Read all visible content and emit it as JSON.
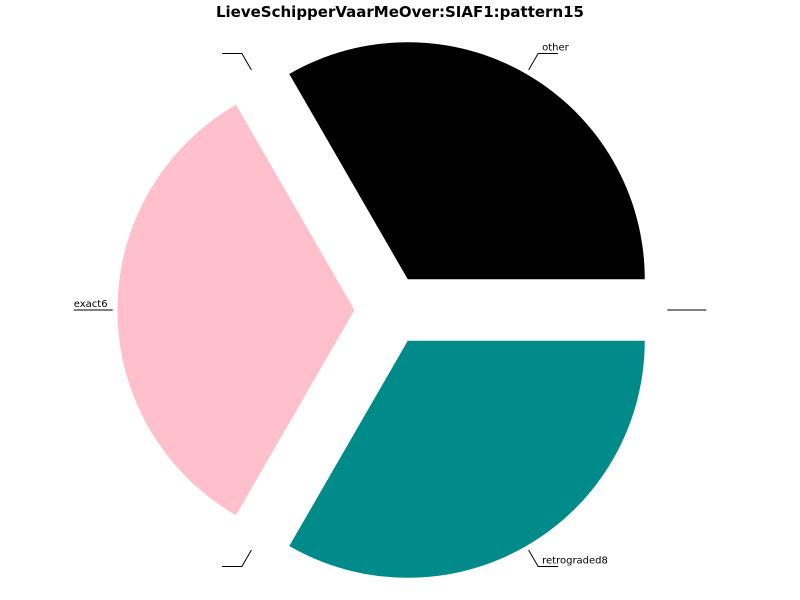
{
  "chart_data": {
    "type": "pie",
    "title": "LieveSchipperVaarMeOver:SIAF1:pattern15",
    "start_angle_deg": 0,
    "direction": "counterclockwise",
    "slices": [
      {
        "label": "other",
        "value": 1,
        "color": "#000000",
        "exploded": true
      },
      {
        "label": "",
        "value": 0,
        "color": "#ffffff",
        "exploded": true
      },
      {
        "label": "exact6",
        "value": 1,
        "color": "#ffc0cb",
        "exploded": true
      },
      {
        "label": "",
        "value": 0,
        "color": "#ffffff",
        "exploded": true
      },
      {
        "label": "retrograded8",
        "value": 1,
        "color": "#008b8a",
        "exploded": true
      },
      {
        "label": "",
        "value": 0,
        "color": "#ffffff",
        "exploded": true
      }
    ]
  }
}
